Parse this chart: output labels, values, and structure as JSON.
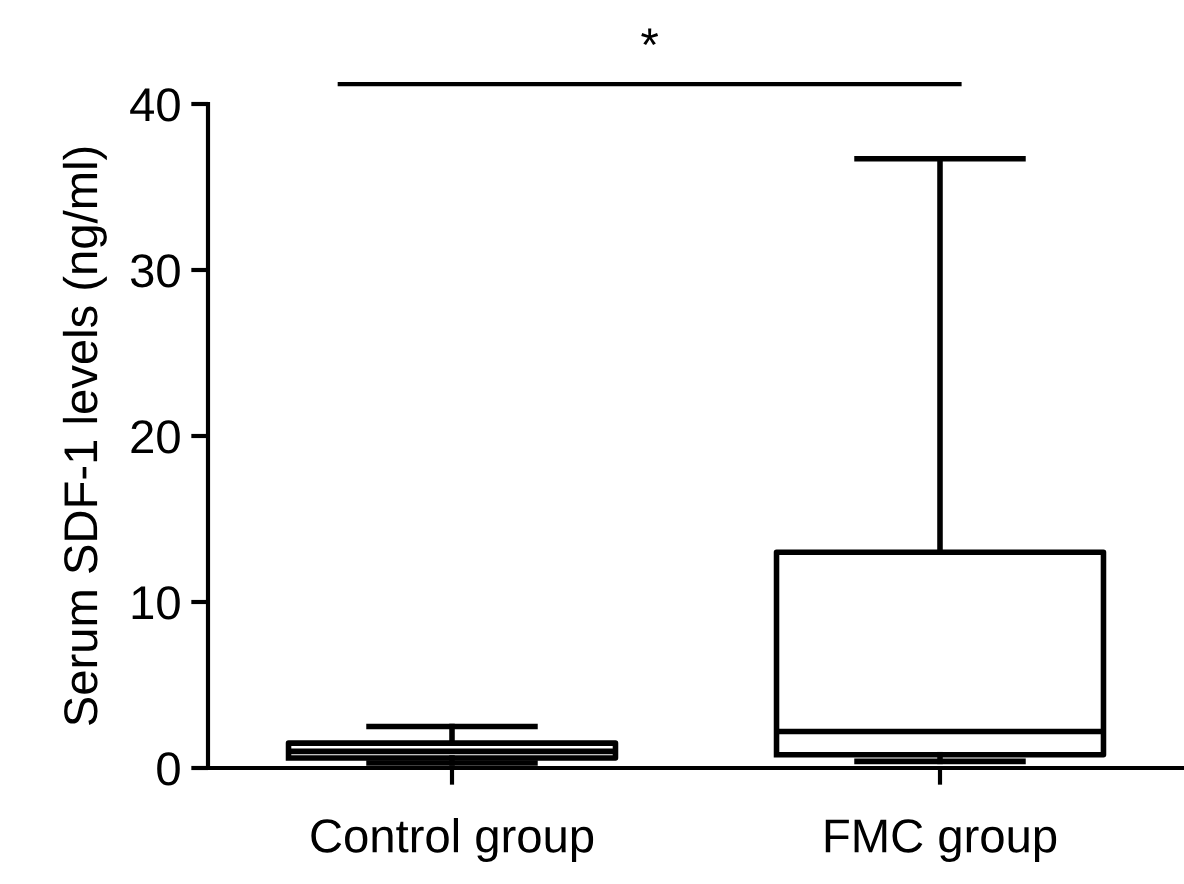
{
  "chart_data": {
    "type": "box",
    "ylabel": "Serum SDF-1 levels (ng/ml)",
    "categories": [
      "Control group",
      "FMC group"
    ],
    "boxes": [
      {
        "low": 0.3,
        "q1": 0.6,
        "median": 1.0,
        "q3": 1.5,
        "high": 2.5
      },
      {
        "low": 0.4,
        "q1": 0.8,
        "median": 2.2,
        "q3": 13.0,
        "high": 36.7
      }
    ],
    "ylim": [
      0,
      40
    ],
    "yticks": [
      0,
      10,
      20,
      30,
      40
    ],
    "grid": false,
    "annotations": [
      "*"
    ],
    "color": "#000000"
  }
}
